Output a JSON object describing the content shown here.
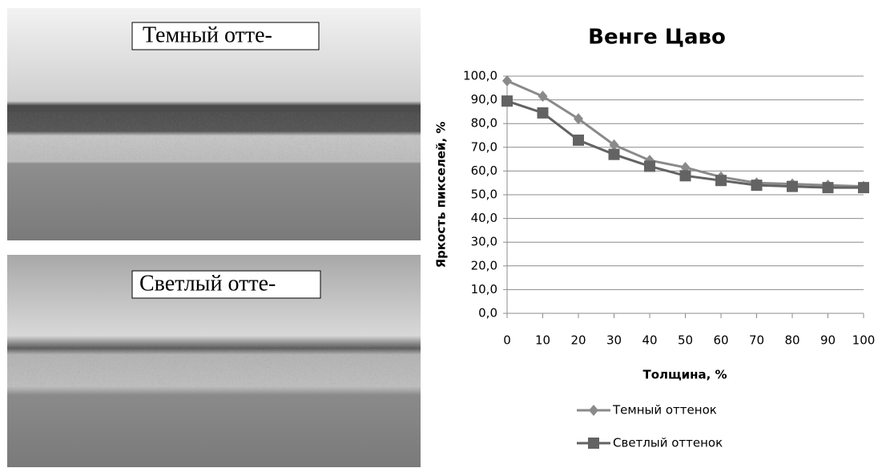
{
  "images": [
    {
      "label": "Темный отте-"
    },
    {
      "label": "Светлый отте-"
    }
  ],
  "chart_data": {
    "type": "line",
    "title": "Венге Цаво",
    "x_label": "Толщина, %",
    "y_label": "Яркость пикселей, %",
    "x": [
      0,
      10,
      20,
      30,
      40,
      50,
      60,
      70,
      80,
      90,
      100
    ],
    "xlim": [
      0,
      100
    ],
    "xticks": [
      0,
      10,
      20,
      30,
      40,
      50,
      60,
      70,
      80,
      90,
      100
    ],
    "ylim": [
      0,
      100
    ],
    "yticks": [
      {
        "value": 0,
        "label": "0,0"
      },
      {
        "value": 10,
        "label": "10,0"
      },
      {
        "value": 20,
        "label": "20,0"
      },
      {
        "value": 30,
        "label": "30,0"
      },
      {
        "value": 40,
        "label": "40,0"
      },
      {
        "value": 50,
        "label": "50,0"
      },
      {
        "value": 60,
        "label": "60,0"
      },
      {
        "value": 70,
        "label": "70,0"
      },
      {
        "value": 80,
        "label": "80,0"
      },
      {
        "value": 90,
        "label": "90,0"
      },
      {
        "value": 100,
        "label": "100,0"
      }
    ],
    "grid": true,
    "series": [
      {
        "name": "Темный оттенок",
        "color": "#8a8a8a",
        "marker": "diamond",
        "values": [
          98,
          91.5,
          82,
          71,
          64.5,
          61.5,
          57.5,
          55,
          54.5,
          54,
          53.5
        ]
      },
      {
        "name": "Светлый оттенок",
        "color": "#636363",
        "marker": "square",
        "values": [
          89.5,
          84.5,
          73,
          67,
          62,
          58,
          56,
          54,
          53.5,
          53,
          53
        ]
      }
    ]
  }
}
